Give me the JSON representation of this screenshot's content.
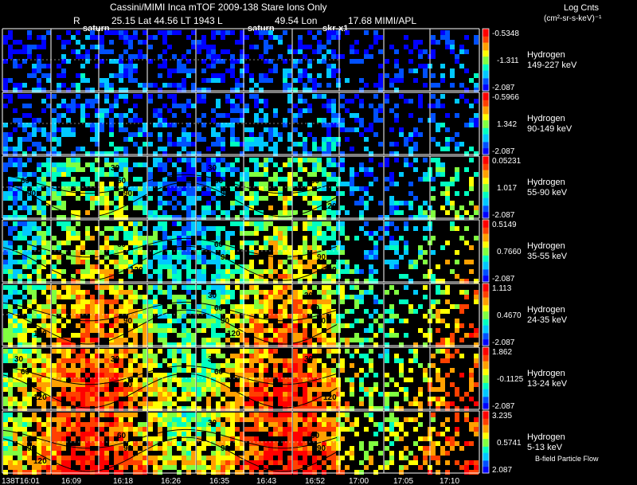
{
  "header": {
    "title": "Cassini/MIMI Inca mTOF  2009-138   Stare   Ions Only",
    "r_label": "R",
    "position": "25.15 Lat 44.56 LT 1943 L",
    "lon": "49.54 Lon",
    "mimi": "17.68  MIMI/APL",
    "colorbar_title": "Log Cnts",
    "colorbar_units": "(cm²-sr-s-keV)⁻¹"
  },
  "sublabels": [
    "saturn",
    "saturn",
    "skr-x1"
  ],
  "footer_label": "B-field Particle Flow",
  "chart_data": {
    "type": "heatmap",
    "title": "Cassini/MIMI Inca mTOF  2009-138   Stare   Ions Only",
    "time_ticks": [
      "138T16:01",
      "16:09",
      "16:18",
      "16:26",
      "16:35",
      "16:43",
      "16:52",
      "17:00",
      "17:05",
      "17:10"
    ],
    "contour_labels": [
      "30",
      "60",
      "90",
      "120"
    ],
    "colormap": [
      "#0000ff",
      "#0050ff",
      "#00c8ff",
      "#00ffc0",
      "#80ff40",
      "#ffff00",
      "#ffa000",
      "#ff4000",
      "#ff0000"
    ],
    "panels": [
      {
        "species": "Hydrogen",
        "energy": "149-227 keV",
        "cb_max": "-0.5348",
        "cb_mid": "-1.311",
        "cb_min": "-2.087",
        "level": 0.12
      },
      {
        "species": "Hydrogen",
        "energy": "90-149 keV",
        "cb_max": "-0.5966",
        "cb_mid": "1.342",
        "cb_min": "-2.087",
        "level": 0.18
      },
      {
        "species": "Hydrogen",
        "energy": "55-90 keV",
        "cb_max": "0.05231",
        "cb_mid": "1.017",
        "cb_min": "-2.087",
        "level": 0.35
      },
      {
        "species": "Hydrogen",
        "energy": "35-55 keV",
        "cb_max": "0.5149",
        "cb_mid": "0.7660",
        "cb_min": "-2.087",
        "level": 0.45
      },
      {
        "species": "Hydrogen",
        "energy": "24-35 keV",
        "cb_max": "1.113",
        "cb_mid": "0.4670",
        "cb_min": "-2.087",
        "level": 0.58
      },
      {
        "species": "Hydrogen",
        "energy": "13-24 keV",
        "cb_max": "1.862",
        "cb_mid": "-0.1125",
        "cb_min": "-2.087",
        "level": 0.68
      },
      {
        "species": "Hydrogen",
        "energy": "5-13 keV",
        "cb_max": "3.235",
        "cb_mid": "0.5741",
        "cb_min": "2.087",
        "level": 0.72
      }
    ]
  },
  "colors": {
    "background": "#000000",
    "text": "#ffffff",
    "grid": "#ffffff"
  }
}
